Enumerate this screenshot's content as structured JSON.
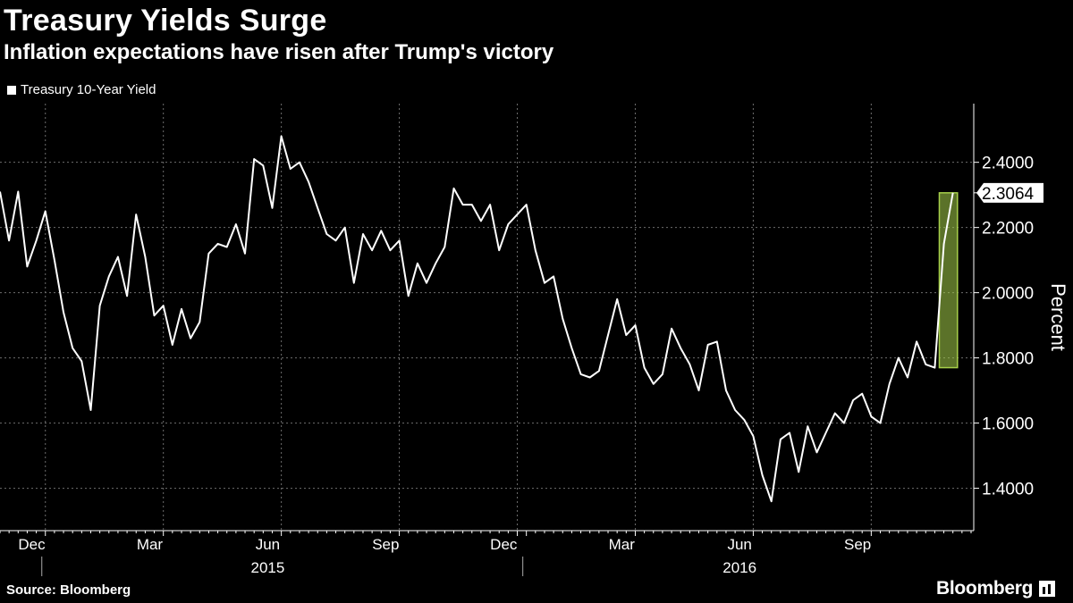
{
  "header": {
    "title": "Treasury Yields Surge",
    "subtitle": "Inflation expectations have risen after Trump's victory"
  },
  "legend": {
    "label": "Treasury 10-Year Yield"
  },
  "footer": {
    "source": "Source: Bloomberg",
    "brand": "Bloomberg"
  },
  "colors": {
    "background": "#000000",
    "line": "#ffffff",
    "highlight": "#a6cf4a",
    "grid": "#6e6e6e"
  },
  "chart_data": {
    "type": "line",
    "title": "Treasury Yields Surge",
    "subtitle": "Inflation expectations have risen after Trump's victory",
    "ylabel": "Percent",
    "ylim": [
      1.27,
      2.58
    ],
    "yticks": [
      "2.4000",
      "2.2000",
      "2.0000",
      "1.8000",
      "1.6000",
      "1.4000"
    ],
    "ytick_values": [
      2.4,
      2.2,
      2.0,
      1.8,
      1.6,
      1.4
    ],
    "xlim": [
      0,
      107
    ],
    "xticks": [
      {
        "label": "Dec",
        "x": 3.5
      },
      {
        "label": "Mar",
        "x": 16.5
      },
      {
        "label": "Jun",
        "x": 29.5
      },
      {
        "label": "Sep",
        "x": 42.5
      },
      {
        "label": "Dec",
        "x": 55.5
      },
      {
        "label": "Mar",
        "x": 68.5
      },
      {
        "label": "Jun",
        "x": 81.5
      },
      {
        "label": "Sep",
        "x": 94.5
      }
    ],
    "year_labels": [
      {
        "label": "2015",
        "x": 29.5
      },
      {
        "label": "2016",
        "x": 81.5
      }
    ],
    "year_dividers": [
      5,
      58
    ],
    "month_grid": [
      5,
      18,
      31,
      44,
      57,
      70,
      83,
      96
    ],
    "last_value_label": "2.3064",
    "highlight_range": {
      "x": [
        103.5,
        105.5
      ],
      "y": [
        1.77,
        2.3064
      ]
    },
    "series": [
      {
        "name": "Treasury 10-Year Yield",
        "x": [
          0,
          1,
          2,
          3,
          4,
          5,
          6,
          7,
          8,
          9,
          10,
          11,
          12,
          13,
          14,
          15,
          16,
          17,
          18,
          19,
          20,
          21,
          22,
          23,
          24,
          25,
          26,
          27,
          28,
          29,
          30,
          31,
          32,
          33,
          34,
          35,
          36,
          37,
          38,
          39,
          40,
          41,
          42,
          43,
          44,
          45,
          46,
          47,
          48,
          49,
          50,
          51,
          52,
          53,
          54,
          55,
          56,
          57,
          58,
          59,
          60,
          61,
          62,
          63,
          64,
          65,
          66,
          67,
          68,
          69,
          70,
          71,
          72,
          73,
          74,
          75,
          76,
          77,
          78,
          79,
          80,
          81,
          82,
          83,
          84,
          85,
          86,
          87,
          88,
          89,
          90,
          91,
          92,
          93,
          94,
          95,
          96,
          97,
          98,
          99,
          100,
          101,
          102,
          103,
          104,
          105
        ],
        "values": [
          2.31,
          2.16,
          2.31,
          2.08,
          2.16,
          2.25,
          2.1,
          1.94,
          1.83,
          1.79,
          1.64,
          1.96,
          2.05,
          2.11,
          1.99,
          2.24,
          2.11,
          1.93,
          1.96,
          1.84,
          1.95,
          1.86,
          1.91,
          2.12,
          2.15,
          2.14,
          2.21,
          2.12,
          2.41,
          2.39,
          2.26,
          2.48,
          2.38,
          2.4,
          2.34,
          2.26,
          2.18,
          2.16,
          2.2,
          2.03,
          2.18,
          2.13,
          2.19,
          2.13,
          2.16,
          1.99,
          2.09,
          2.03,
          2.09,
          2.14,
          2.32,
          2.27,
          2.27,
          2.22,
          2.27,
          2.13,
          2.21,
          2.24,
          2.27,
          2.13,
          2.03,
          2.05,
          1.92,
          1.83,
          1.75,
          1.74,
          1.76,
          1.87,
          1.98,
          1.87,
          1.9,
          1.77,
          1.72,
          1.75,
          1.89,
          1.83,
          1.78,
          1.7,
          1.84,
          1.85,
          1.7,
          1.64,
          1.61,
          1.56,
          1.44,
          1.36,
          1.55,
          1.57,
          1.45,
          1.59,
          1.51,
          1.57,
          1.63,
          1.6,
          1.67,
          1.69,
          1.62,
          1.6,
          1.72,
          1.8,
          1.74,
          1.85,
          1.78,
          1.77,
          2.15,
          2.3064
        ]
      }
    ]
  }
}
